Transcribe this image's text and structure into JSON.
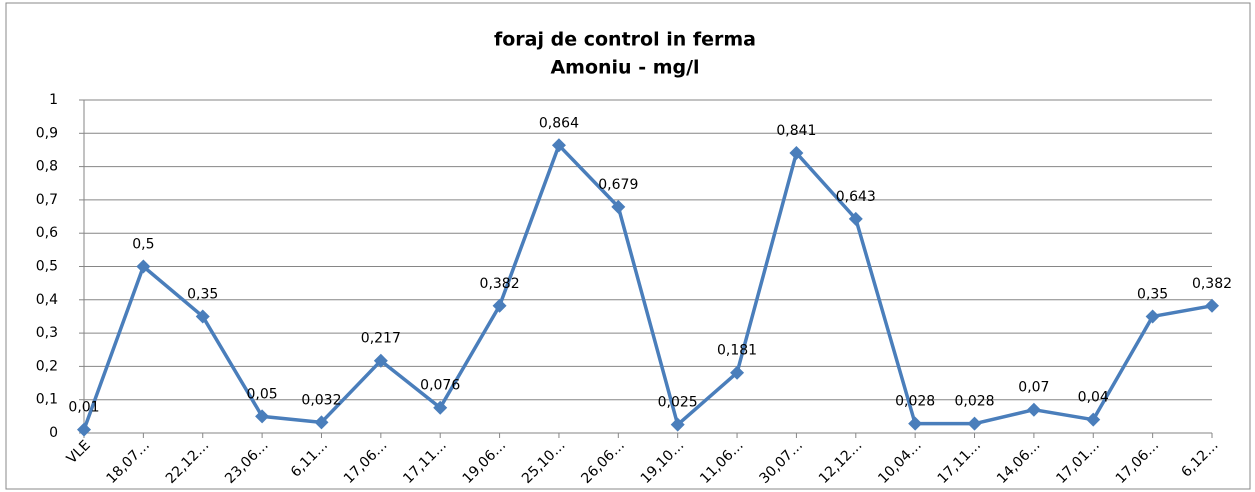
{
  "chart_data": {
    "type": "line",
    "title": "foraj de control in ferma",
    "subtitle": "Amoniu - mg/l",
    "categories": [
      "VLE",
      "18,07…",
      "22,12…",
      "23,06…",
      "6,11…",
      "17,06…",
      "17,11…",
      "19,06…",
      "25,10…",
      "26,06…",
      "19,10…",
      "11,06…",
      "30,07…",
      "12,12…",
      "10,04…",
      "17,11…",
      "14,06…",
      "17,01…",
      "17,06…",
      "6,12…"
    ],
    "series": [
      {
        "name": "Amoniu",
        "color": "#4a7ebb",
        "values": [
          0.01,
          0.5,
          0.35,
          0.05,
          0.032,
          0.217,
          0.076,
          0.382,
          0.864,
          0.679,
          0.025,
          0.181,
          0.841,
          0.643,
          0.028,
          0.028,
          0.07,
          0.04,
          0.35,
          0.382
        ],
        "value_labels": [
          "0,01",
          "0,5",
          "0,35",
          "0,05",
          "0,032",
          "0,217",
          "0,076",
          "0,382",
          "0,864",
          "0,679",
          "0,025",
          "0,181",
          "0,841",
          "0,643",
          "0,028",
          "0,028",
          "0,07",
          "0,04",
          "0,35",
          "0,382"
        ]
      }
    ],
    "ylim": [
      0,
      1
    ],
    "yticks": [
      0,
      {
        "value": 0.1,
        "label": "0,1"
      },
      {
        "value": 0.2,
        "label": "0,2"
      },
      {
        "value": 0.3,
        "label": "0,3"
      },
      {
        "value": 0.4,
        "label": "0,4"
      },
      {
        "value": 0.5,
        "label": "0,5"
      },
      {
        "value": 0.6,
        "label": "0,6"
      },
      {
        "value": 0.7,
        "label": "0,7"
      },
      {
        "value": 0.8,
        "label": "0,8"
      },
      {
        "value": 0.9,
        "label": "0,9"
      },
      1
    ],
    "grid": true
  }
}
